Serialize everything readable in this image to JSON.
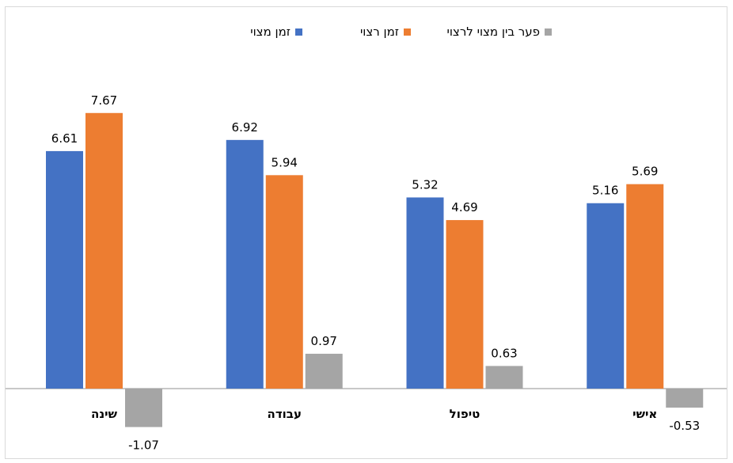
{
  "chart_data": {
    "type": "bar",
    "categories": [
      "שינה",
      "עבודה",
      "טיפול",
      "אישי"
    ],
    "series": [
      {
        "name": "זמן מצוי",
        "values": [
          6.61,
          6.92,
          5.32,
          5.16
        ],
        "labels": [
          "6.61",
          "6.92",
          "5.32",
          "5.16"
        ],
        "color": "#4472c4"
      },
      {
        "name": "זמן רצוי",
        "values": [
          7.67,
          5.94,
          4.69,
          5.69
        ],
        "labels": [
          "7.67",
          "5.94",
          "4.69",
          "5.69"
        ],
        "color": "#ed7d31"
      },
      {
        "name": "פער בין מצוי לרצוי",
        "values": [
          -1.07,
          0.97,
          0.63,
          -0.53
        ],
        "labels": [
          "-1.07",
          "0.97",
          "0.63",
          "-0.53"
        ],
        "color": "#a5a5a5"
      }
    ],
    "legend_position": "top",
    "grid": false,
    "ylim": [
      -1.3,
      8.8
    ],
    "title": "",
    "xlabel": "",
    "ylabel": ""
  }
}
